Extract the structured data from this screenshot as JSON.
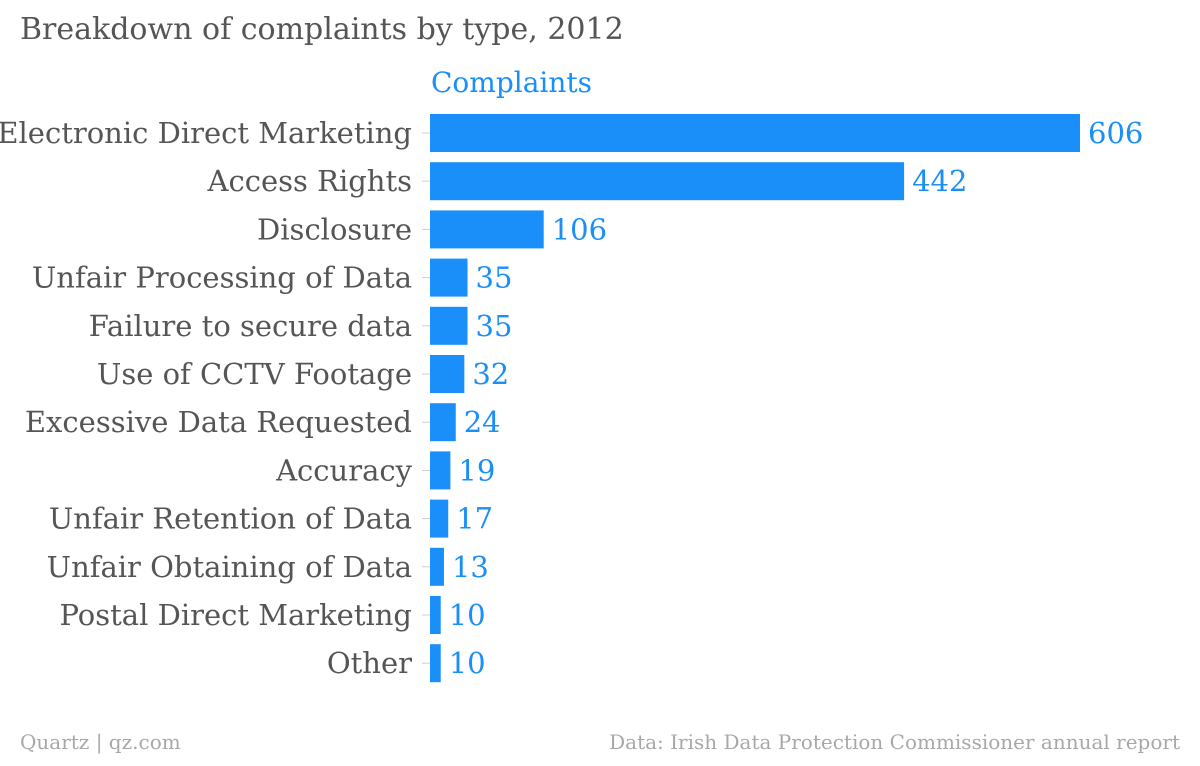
{
  "chart_data": {
    "type": "bar",
    "orientation": "horizontal",
    "title": "Breakdown of complaints by type, 2012",
    "legend": "top-left",
    "grid": false,
    "xlim": [
      0,
      606
    ],
    "categories": [
      "Electronic Direct Marketing",
      "Access Rights",
      "Disclosure",
      "Unfair Processing of Data",
      "Failure to secure data",
      "Use of CCTV Footage",
      "Excessive Data Requested",
      "Accuracy",
      "Unfair Retention of Data",
      "Unfair Obtaining of Data",
      "Postal Direct Marketing",
      "Other"
    ],
    "series": [
      {
        "name": "Complaints",
        "values": [
          606,
          442,
          106,
          35,
          35,
          32,
          24,
          19,
          17,
          13,
          10,
          10
        ]
      }
    ],
    "colors": {
      "bar": "#1a8ef9",
      "series_label": "#1a8ef9",
      "value_label": "#1a8ef9",
      "category_label": "#555555",
      "tick": "#cccccc"
    }
  },
  "footer": {
    "source_left": "Quartz | qz.com",
    "source_right": "Data: Irish Data Protection Commissioner annual report"
  }
}
